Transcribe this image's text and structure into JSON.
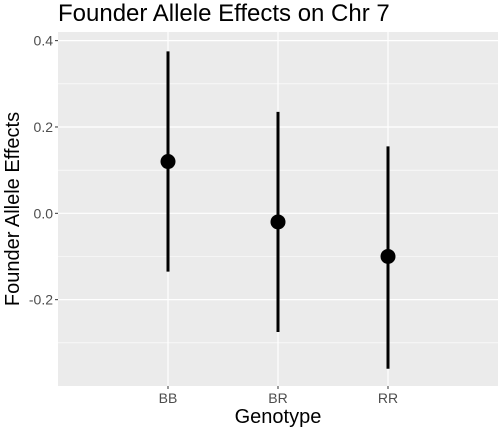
{
  "chart_data": {
    "type": "scatter",
    "title": "Founder Allele Effects on Chr 7",
    "xlabel": "Genotype",
    "ylabel": "Founder Allele Effects",
    "categories": [
      "BB",
      "BR",
      "RR"
    ],
    "estimates": [
      0.12,
      -0.02,
      -0.1
    ],
    "lower": [
      -0.135,
      -0.275,
      -0.36
    ],
    "upper": [
      0.375,
      0.235,
      0.155
    ],
    "ylim": [
      -0.4,
      0.42
    ],
    "yticks": [
      -0.2,
      0.0,
      0.2,
      0.4
    ],
    "ytick_labels": [
      "-0.2",
      "0.0",
      "0.2",
      "0.4"
    ],
    "grid": true,
    "colors": {
      "panel": "#ebebeb",
      "grid": "#ffffff",
      "marks": "#000000"
    }
  }
}
